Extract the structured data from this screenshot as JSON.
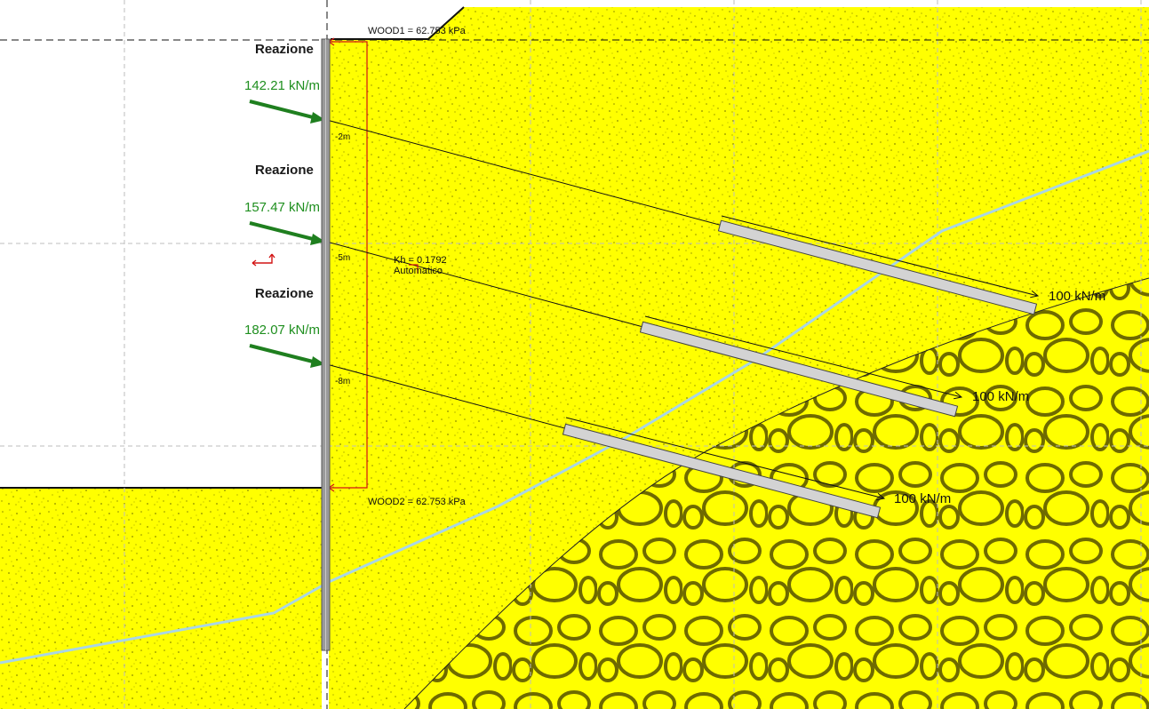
{
  "colors": {
    "soil": "#ffff00",
    "soil_dots": "#8c8c00",
    "gravel_outline": "#6e6a00",
    "anchor_force": "#1f7f1f",
    "pressure_diagram": "#d21414",
    "water_line": "#a9d6e6",
    "wall": "#7a7a7a",
    "bulb_fill": "#d3d3d3",
    "grid": "#bdbdbd"
  },
  "wall": {
    "surcharge_top": "WOOD1 = 62.753 kPa",
    "surcharge_bottom": "WOOD2 = 62.753 kPa"
  },
  "seismic": {
    "kh": "Kh = 0.1792",
    "mode": "Automatico",
    "icon": "seismic-arrows-icon"
  },
  "depth_markers": [
    "-2m",
    "-5m",
    "-8m"
  ],
  "reactions": [
    {
      "label": "Reazione",
      "value": "142.21 kN/m"
    },
    {
      "label": "Reazione",
      "value": "157.47 kN/m"
    },
    {
      "label": "Reazione",
      "value": "182.07 kN/m"
    }
  ],
  "anchors": [
    {
      "force": "100 kN/m"
    },
    {
      "force": "100 kN/m"
    },
    {
      "force": "100 kN/m"
    }
  ]
}
